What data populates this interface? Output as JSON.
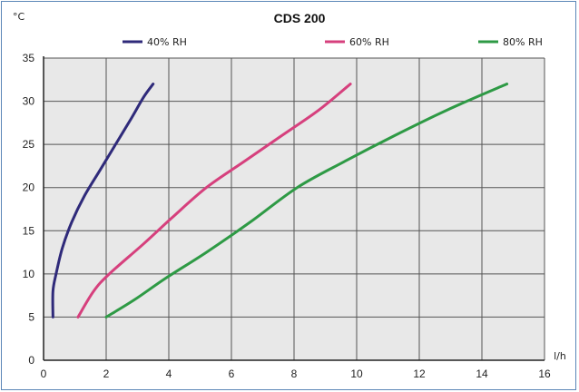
{
  "chart_data": {
    "type": "line",
    "title": "CDS 200",
    "ylabel": "°C",
    "xlabel": "l/h",
    "xlim": [
      0,
      16
    ],
    "ylim": [
      0,
      35
    ],
    "x_ticks": [
      0,
      2,
      4,
      6,
      8,
      10,
      12,
      14,
      16
    ],
    "y_ticks": [
      0,
      5,
      10,
      15,
      20,
      25,
      30,
      35
    ],
    "grid": true,
    "legend_position": "top",
    "series": [
      {
        "name": "40% RH",
        "color": "#2f2a7a",
        "points": [
          [
            0.3,
            5
          ],
          [
            0.3,
            8
          ],
          [
            0.4,
            10
          ],
          [
            0.6,
            13
          ],
          [
            0.9,
            16
          ],
          [
            1.3,
            19
          ],
          [
            1.8,
            22
          ],
          [
            2.3,
            25
          ],
          [
            2.8,
            28
          ],
          [
            3.2,
            30.5
          ],
          [
            3.5,
            32
          ]
        ]
      },
      {
        "name": "60% RH",
        "color": "#d6407d",
        "points": [
          [
            1.1,
            5
          ],
          [
            1.6,
            8
          ],
          [
            2.1,
            10
          ],
          [
            3.2,
            13.5
          ],
          [
            4.1,
            16.5
          ],
          [
            5.2,
            20
          ],
          [
            6.4,
            23
          ],
          [
            7.6,
            26
          ],
          [
            8.8,
            29
          ],
          [
            9.8,
            32
          ]
        ]
      },
      {
        "name": "80% RH",
        "color": "#2e9a45",
        "points": [
          [
            2,
            5
          ],
          [
            2.9,
            7
          ],
          [
            3.9,
            9.5
          ],
          [
            5.2,
            12.5
          ],
          [
            6.6,
            16
          ],
          [
            8.1,
            20
          ],
          [
            9.6,
            23
          ],
          [
            11.2,
            26
          ],
          [
            12.9,
            29
          ],
          [
            14.8,
            32
          ]
        ]
      }
    ]
  }
}
